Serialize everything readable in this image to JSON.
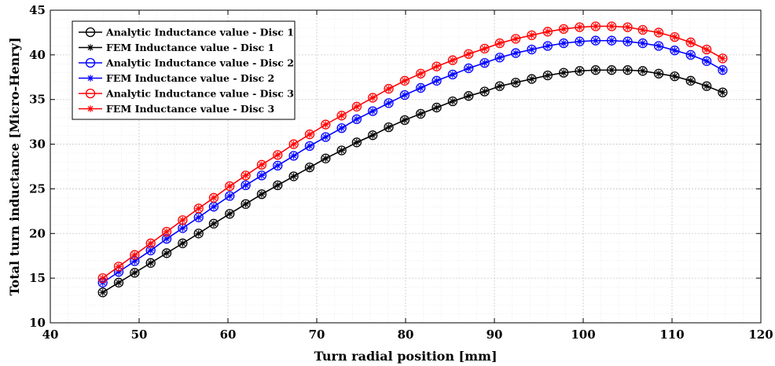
{
  "chart_data": {
    "type": "line",
    "xlabel": "Turn radial position  [mm]",
    "ylabel": "Total turn inductance  [Micro-Henry]",
    "xlim": [
      40,
      120
    ],
    "ylim": [
      10,
      45
    ],
    "xticks": [
      40,
      50,
      60,
      70,
      80,
      90,
      100,
      110,
      120
    ],
    "yticks": [
      10,
      15,
      20,
      25,
      30,
      35,
      40,
      45
    ],
    "grid": true,
    "minor_grid": true,
    "legend_position": "top-left",
    "x": [
      45.9,
      47.7,
      49.5,
      51.3,
      53.1,
      54.9,
      56.7,
      58.4,
      60.2,
      62.0,
      63.8,
      65.6,
      67.4,
      69.2,
      71.0,
      72.8,
      74.5,
      76.3,
      78.1,
      79.9,
      81.7,
      83.5,
      85.3,
      87.1,
      88.9,
      90.6,
      92.4,
      94.2,
      96.0,
      97.8,
      99.6,
      101.4,
      103.2,
      105.0,
      106.7,
      108.5,
      110.3,
      112.1,
      113.9,
      115.7
    ],
    "series": [
      {
        "name": "Analytic Inductance value - Disc 1",
        "color": "#000000",
        "marker": "circle",
        "values": [
          13.4,
          14.5,
          15.6,
          16.7,
          17.8,
          18.9,
          20.0,
          21.1,
          22.2,
          23.3,
          24.4,
          25.4,
          26.4,
          27.4,
          28.4,
          29.3,
          30.2,
          31.0,
          31.9,
          32.7,
          33.4,
          34.1,
          34.8,
          35.4,
          35.9,
          36.5,
          36.9,
          37.3,
          37.7,
          38.0,
          38.2,
          38.3,
          38.3,
          38.3,
          38.2,
          37.9,
          37.6,
          37.1,
          36.5,
          35.8
        ]
      },
      {
        "name": "FEM Inductance value - Disc 1",
        "color": "#000000",
        "marker": "star",
        "values": [
          13.4,
          14.5,
          15.6,
          16.7,
          17.8,
          18.9,
          20.0,
          21.1,
          22.2,
          23.3,
          24.4,
          25.4,
          26.4,
          27.4,
          28.4,
          29.3,
          30.2,
          31.0,
          31.9,
          32.7,
          33.4,
          34.1,
          34.8,
          35.4,
          35.9,
          36.5,
          36.9,
          37.3,
          37.7,
          38.0,
          38.2,
          38.3,
          38.3,
          38.3,
          38.2,
          37.9,
          37.6,
          37.1,
          36.5,
          35.8
        ]
      },
      {
        "name": "Analytic Inductance value - Disc 2",
        "color": "#0000ff",
        "marker": "circle",
        "values": [
          14.5,
          15.7,
          16.9,
          18.1,
          19.4,
          20.6,
          21.8,
          23.0,
          24.2,
          25.4,
          26.5,
          27.6,
          28.7,
          29.8,
          30.8,
          31.8,
          32.8,
          33.7,
          34.6,
          35.5,
          36.3,
          37.1,
          37.8,
          38.5,
          39.1,
          39.7,
          40.2,
          40.6,
          41.0,
          41.3,
          41.5,
          41.6,
          41.6,
          41.5,
          41.3,
          41.0,
          40.5,
          40.0,
          39.3,
          38.3
        ]
      },
      {
        "name": "FEM Inductance value - Disc 2",
        "color": "#0000ff",
        "marker": "star",
        "values": [
          14.5,
          15.7,
          16.9,
          18.1,
          19.4,
          20.6,
          21.8,
          23.0,
          24.2,
          25.4,
          26.5,
          27.6,
          28.7,
          29.8,
          30.8,
          31.8,
          32.8,
          33.7,
          34.6,
          35.5,
          36.3,
          37.1,
          37.8,
          38.5,
          39.1,
          39.7,
          40.2,
          40.6,
          41.0,
          41.3,
          41.5,
          41.6,
          41.6,
          41.5,
          41.3,
          41.0,
          40.5,
          40.0,
          39.3,
          38.3
        ]
      },
      {
        "name": "Analytic Inductance value - Disc 3",
        "color": "#ff0000",
        "marker": "circle",
        "values": [
          15.0,
          16.3,
          17.6,
          18.9,
          20.2,
          21.5,
          22.8,
          24.0,
          25.3,
          26.5,
          27.7,
          28.8,
          30.0,
          31.1,
          32.2,
          33.2,
          34.2,
          35.2,
          36.2,
          37.1,
          37.9,
          38.7,
          39.4,
          40.1,
          40.7,
          41.3,
          41.8,
          42.2,
          42.6,
          42.9,
          43.1,
          43.2,
          43.2,
          43.1,
          42.8,
          42.5,
          42.0,
          41.4,
          40.6,
          39.6
        ]
      },
      {
        "name": "FEM Inductance value - Disc 3",
        "color": "#ff0000",
        "marker": "star",
        "values": [
          15.0,
          16.3,
          17.6,
          18.9,
          20.2,
          21.5,
          22.8,
          24.0,
          25.3,
          26.5,
          27.7,
          28.8,
          30.0,
          31.1,
          32.2,
          33.2,
          34.2,
          35.2,
          36.2,
          37.1,
          37.9,
          38.7,
          39.4,
          40.1,
          40.7,
          41.3,
          41.8,
          42.2,
          42.6,
          42.9,
          43.1,
          43.2,
          43.2,
          43.1,
          42.8,
          42.5,
          42.0,
          41.4,
          40.6,
          39.6
        ]
      }
    ]
  }
}
